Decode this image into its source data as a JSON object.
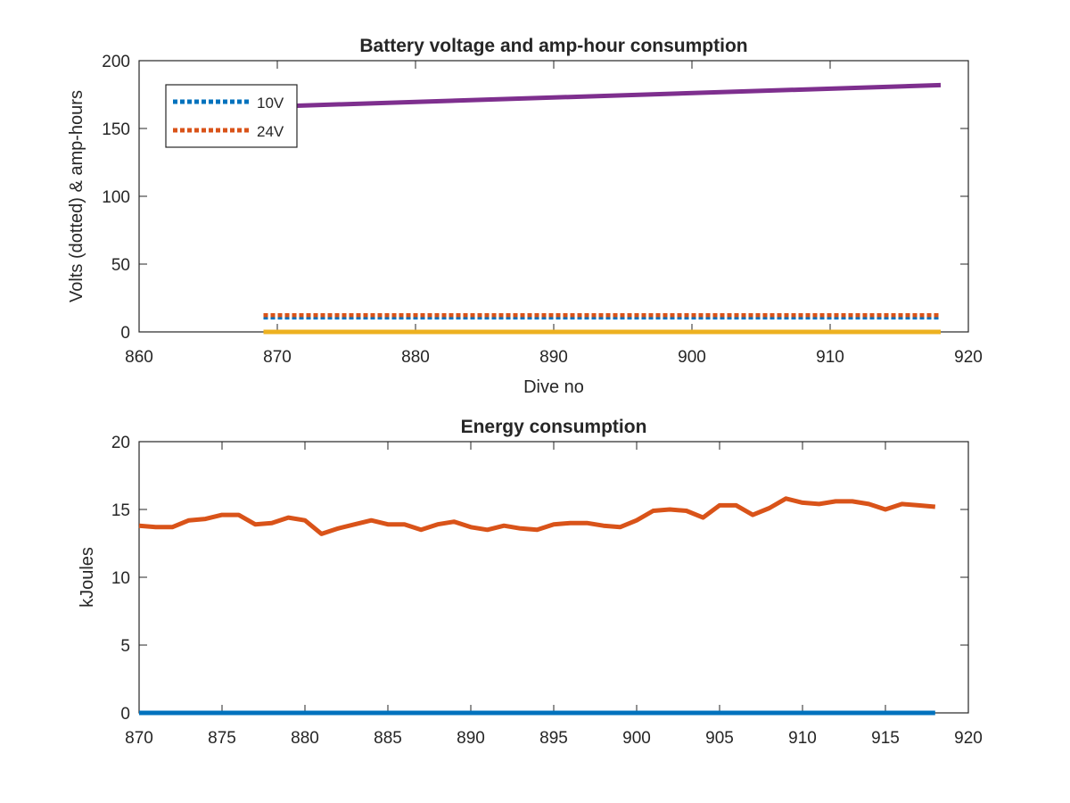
{
  "chart_data": [
    {
      "type": "line",
      "title": "Battery voltage and amp-hour consumption",
      "xlabel": "Dive no",
      "ylabel": "Volts (dotted) & amp-hours",
      "xlim": [
        860,
        920
      ],
      "ylim": [
        0,
        200
      ],
      "xticks": [
        860,
        870,
        880,
        890,
        900,
        910,
        920
      ],
      "yticks": [
        0,
        50,
        100,
        150,
        200
      ],
      "grid": false,
      "legend_position": "top-left",
      "series": [
        {
          "name": "10V",
          "style": "dotted",
          "color": "#0072bd",
          "x": [
            869,
            918
          ],
          "y": [
            10.6,
            10.6
          ]
        },
        {
          "name": "24V",
          "style": "dotted",
          "color": "#d95319",
          "x": [
            869,
            918
          ],
          "y": [
            12.4,
            12.4
          ]
        },
        {
          "style": "solid",
          "color": "#edb120",
          "x": [
            869,
            918
          ],
          "y": [
            0,
            0
          ]
        },
        {
          "style": "solid",
          "color": "#7e2f8e",
          "x": [
            869,
            918
          ],
          "y": [
            166,
            182
          ]
        }
      ]
    },
    {
      "type": "line",
      "title": "Energy consumption",
      "xlabel": "",
      "ylabel": "kJoules",
      "xlim": [
        870,
        920
      ],
      "ylim": [
        0,
        20
      ],
      "xticks": [
        870,
        875,
        880,
        885,
        890,
        895,
        900,
        905,
        910,
        915,
        920
      ],
      "yticks": [
        0,
        5,
        10,
        15,
        20
      ],
      "grid": false,
      "series": [
        {
          "style": "solid",
          "color": "#d95319",
          "x": [
            870,
            871,
            872,
            873,
            874,
            875,
            876,
            877,
            878,
            879,
            880,
            881,
            882,
            883,
            884,
            885,
            886,
            887,
            888,
            889,
            890,
            891,
            892,
            893,
            894,
            895,
            896,
            897,
            898,
            899,
            900,
            901,
            902,
            903,
            904,
            905,
            906,
            907,
            908,
            909,
            910,
            911,
            912,
            913,
            914,
            915,
            916,
            917,
            918
          ],
          "y": [
            13.8,
            13.7,
            13.7,
            14.2,
            14.3,
            14.6,
            14.6,
            13.9,
            14.0,
            14.4,
            14.2,
            13.2,
            13.6,
            13.9,
            14.2,
            13.9,
            13.9,
            13.5,
            13.9,
            14.1,
            13.7,
            13.5,
            13.8,
            13.6,
            13.5,
            13.9,
            14.0,
            14.0,
            13.8,
            13.7,
            14.2,
            14.9,
            15.0,
            14.9,
            14.4,
            15.3,
            15.3,
            14.6,
            15.1,
            15.8,
            15.5,
            15.4,
            15.6,
            15.6,
            15.4,
            15.0,
            15.4,
            15.3,
            15.2
          ]
        },
        {
          "style": "solid",
          "color": "#0072bd",
          "x": [
            870,
            918
          ],
          "y": [
            0,
            0
          ]
        }
      ]
    }
  ]
}
